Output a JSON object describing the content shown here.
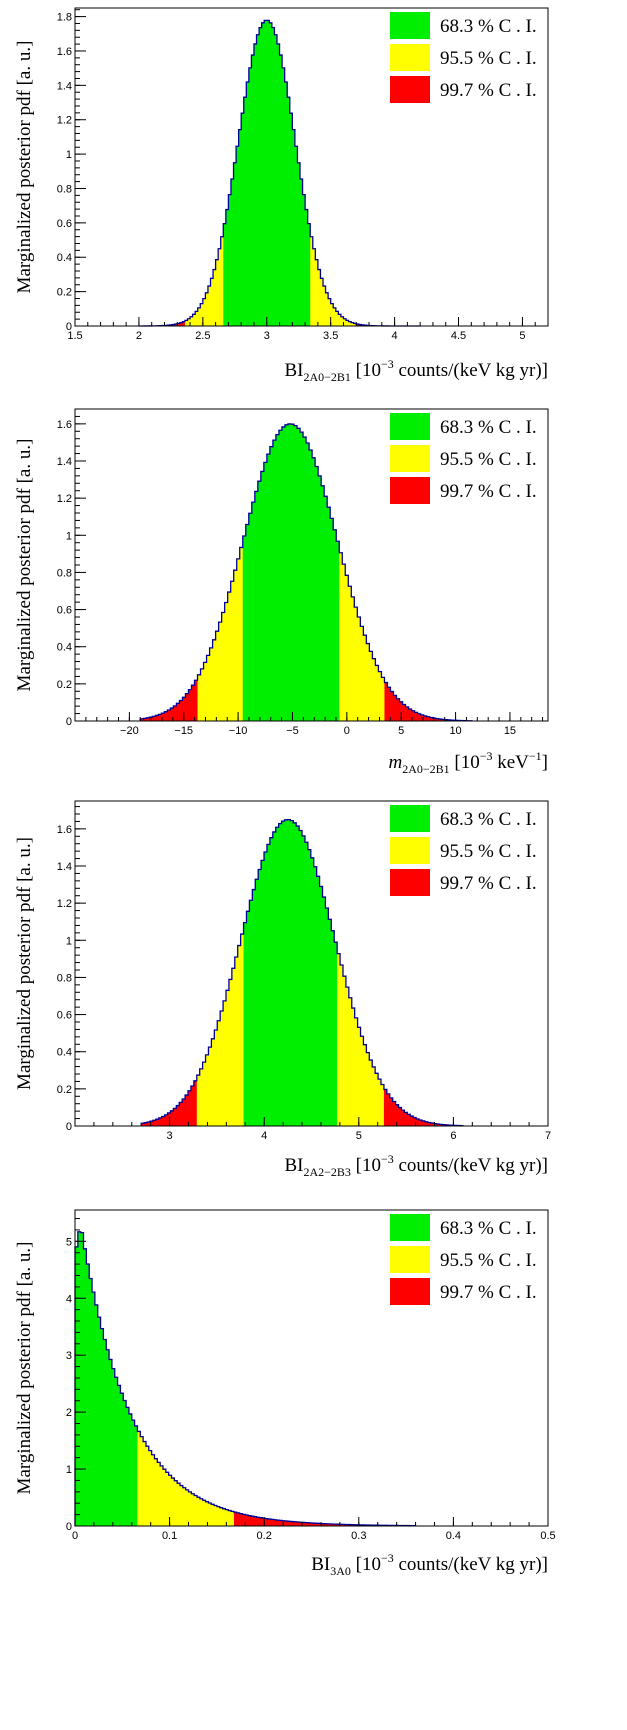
{
  "legend": [
    {
      "label": "68.3 % C . I.",
      "color": "#00ee00"
    },
    {
      "label": "95.5 % C . I.",
      "color": "#ffff00"
    },
    {
      "label": "99.7 % C . I.",
      "color": "#ff0000"
    }
  ],
  "colors": {
    "outline": "#000099",
    "frame": "#000000"
  },
  "chart_data": [
    {
      "type": "histogram",
      "distribution": "gaussian",
      "ylabel": "Marginalized posterior pdf [a. u.]",
      "xlabel": {
        "base": "BI",
        "sub": "2A0−2B1",
        "pre": " [10",
        "sup": "−3",
        "post": " counts/(keV kg yr)]"
      },
      "xlim": [
        1.5,
        5.2
      ],
      "ylim": [
        0,
        1.85
      ],
      "xticks": [
        1.5,
        2,
        2.5,
        3,
        3.5,
        4,
        4.5,
        5
      ],
      "xtick_labels": [
        "1.5",
        "2",
        "2.5",
        "3",
        "3.5",
        "4",
        "4.5",
        "5"
      ],
      "yticks": [
        0,
        0.2,
        0.4,
        0.6,
        0.8,
        1,
        1.2,
        1.4,
        1.6,
        1.8
      ],
      "ytick_labels": [
        "0",
        "0.2",
        "0.4",
        "0.6",
        "0.8",
        "1",
        "1.2",
        "1.4",
        "1.6",
        "1.8"
      ],
      "mean": 3.0,
      "sigma": 0.223,
      "peak": 1.78,
      "range": [
        2.0,
        4.2
      ],
      "bins": 110,
      "intervals": [
        [
          2.67,
          3.33
        ],
        [
          2.37,
          3.7
        ],
        [
          2.0,
          4.2
        ]
      ]
    },
    {
      "type": "histogram",
      "distribution": "gaussian",
      "ylabel": "Marginalized posterior pdf [a. u.]",
      "xlabel": {
        "base": "m",
        "sub": "2A0−2B1",
        "pre": " [10",
        "sup": "−3",
        "post": " keV",
        "sup2": "−1",
        "post2": "]"
      },
      "xlim": [
        -25,
        18.5
      ],
      "ylim": [
        0,
        1.68
      ],
      "xticks": [
        -20,
        -15,
        -10,
        -5,
        0,
        5,
        10,
        15
      ],
      "xtick_labels": [
        "−20",
        "−15",
        "−10",
        "−5",
        "0",
        "5",
        "10",
        "15"
      ],
      "yticks": [
        0,
        0.2,
        0.4,
        0.6,
        0.8,
        1,
        1.2,
        1.4,
        1.6
      ],
      "ytick_labels": [
        "0",
        "0.2",
        "0.4",
        "0.6",
        "0.8",
        "1",
        "1.2",
        "1.4",
        "1.6"
      ],
      "mean": -5.2,
      "sigma": 4.35,
      "peak": 1.6,
      "range": [
        -19.0,
        11.5
      ],
      "bins": 110,
      "intervals": [
        [
          -9.6,
          -0.6
        ],
        [
          -13.7,
          3.5
        ],
        [
          -19.0,
          11.5
        ]
      ]
    },
    {
      "type": "histogram",
      "distribution": "gaussian",
      "ylabel": "Marginalized posterior pdf [a. u.]",
      "xlabel": {
        "base": "BI",
        "sub": "2A2−2B3",
        "pre": " [10",
        "sup": "−3",
        "post": " counts/(keV kg yr)]"
      },
      "xlim": [
        2.0,
        7.0
      ],
      "ylim": [
        0,
        1.75
      ],
      "xticks": [
        3,
        4,
        5,
        6,
        7
      ],
      "xtick_labels": [
        "3",
        "4",
        "5",
        "6",
        "7"
      ],
      "yticks": [
        0,
        0.2,
        0.4,
        0.6,
        0.8,
        1,
        1.2,
        1.4,
        1.6
      ],
      "ytick_labels": [
        "0",
        "0.2",
        "0.4",
        "0.6",
        "0.8",
        "1",
        "1.2",
        "1.4",
        "1.6"
      ],
      "mean": 4.25,
      "sigma": 0.5,
      "peak": 1.65,
      "range": [
        2.7,
        6.1
      ],
      "bins": 110,
      "intervals": [
        [
          3.77,
          4.77
        ],
        [
          3.3,
          5.28
        ],
        [
          2.7,
          6.1
        ]
      ]
    },
    {
      "type": "histogram",
      "distribution": "exponential",
      "ylabel": "Marginalized posterior pdf [a. u.]",
      "xlabel": {
        "base": "BI",
        "sub": "3A0",
        "pre": " [10",
        "sup": "−3",
        "post": " counts/(keV kg yr)]"
      },
      "xlim": [
        0,
        0.5
      ],
      "ylim": [
        0,
        5.55
      ],
      "xticks": [
        0,
        0.1,
        0.2,
        0.3,
        0.4,
        0.5
      ],
      "xtick_labels": [
        "0",
        "0.1",
        "0.2",
        "0.3",
        "0.4",
        "0.5"
      ],
      "yticks": [
        0,
        1,
        2,
        3,
        4,
        5
      ],
      "ytick_labels": [
        "0",
        "1",
        "2",
        "3",
        "4",
        "5"
      ],
      "peak": 5.3,
      "decay": 0.053,
      "rise_end": 0.006,
      "range": [
        0,
        0.36
      ],
      "bins": 120,
      "intervals": [
        [
          0,
          0.065
        ],
        [
          0.065,
          0.168
        ],
        [
          0.168,
          0.36
        ]
      ]
    }
  ]
}
